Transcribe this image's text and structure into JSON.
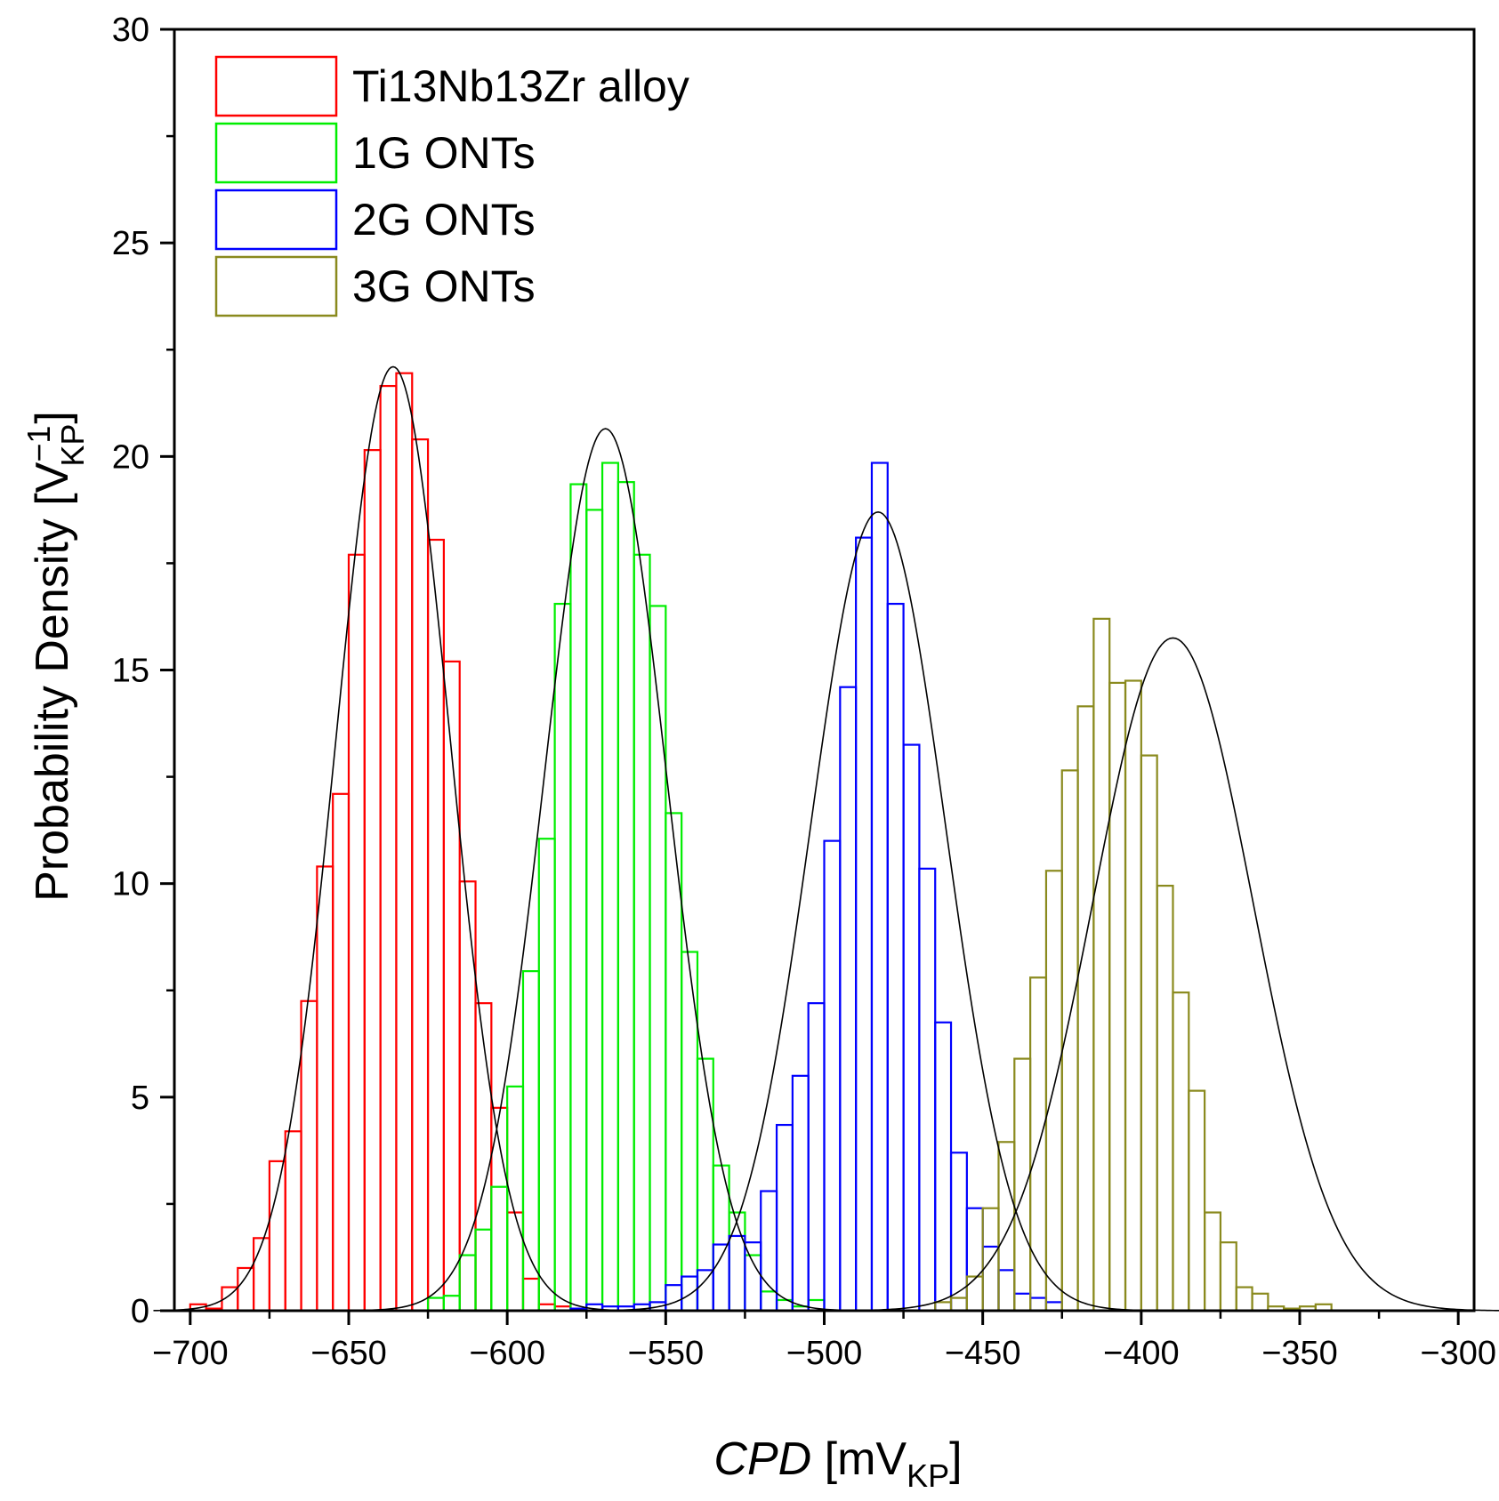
{
  "chart_data": {
    "type": "histogram",
    "title": "",
    "xlabel": {
      "main": "CPD",
      "unit_prefix": "mV",
      "unit_sub": "KP"
    },
    "ylabel": {
      "main": "Probability Density",
      "unit_base": "V",
      "unit_sup": "−1",
      "unit_sub": "KP"
    },
    "xlim": [
      -705,
      -295
    ],
    "ylim": [
      0,
      30
    ],
    "xticks": [
      -700,
      -650,
      -600,
      -550,
      -500,
      -450,
      -400,
      -350,
      -300
    ],
    "xtick_labels": [
      "−700",
      "−650",
      "−600",
      "−550",
      "−500",
      "−450",
      "−400",
      "−350",
      "−300"
    ],
    "yticks": [
      0,
      5,
      10,
      15,
      20,
      25,
      30
    ],
    "ytick_labels": [
      "0",
      "5",
      "10",
      "15",
      "20",
      "25",
      "30"
    ],
    "bin_width": 5,
    "legend_position": "top-left",
    "series": [
      {
        "name": "Ti13Nb13Zr alloy",
        "color": "#ff0000",
        "bin_start": -700,
        "values": [
          0.15,
          0.05,
          0.55,
          1.0,
          1.7,
          3.5,
          4.2,
          7.25,
          10.4,
          12.1,
          17.7,
          20.15,
          21.65,
          21.95,
          20.4,
          18.05,
          15.2,
          10.05,
          7.2,
          4.75,
          2.3,
          0.75,
          0.15,
          0.1
        ]
      },
      {
        "name": "1G ONTs",
        "color": "#00ee00",
        "bin_start": -625,
        "values": [
          0.3,
          0.35,
          1.3,
          1.9,
          2.9,
          5.25,
          7.95,
          11.05,
          16.55,
          19.35,
          18.75,
          19.85,
          19.4,
          17.7,
          16.5,
          11.65,
          8.4,
          5.9,
          3.4,
          2.3,
          1.3,
          0.45,
          0.25,
          0.1,
          0.25
        ]
      },
      {
        "name": "2G ONTs",
        "color": "#0000ff",
        "bin_start": -580,
        "values": [
          0.05,
          0.15,
          0.1,
          0.1,
          0.15,
          0.2,
          0.6,
          0.8,
          0.95,
          1.55,
          1.75,
          1.6,
          2.8,
          4.35,
          5.5,
          7.2,
          11.0,
          14.6,
          18.1,
          19.85,
          16.55,
          13.25,
          10.35,
          6.75,
          3.7,
          2.4,
          1.5,
          0.95,
          0.4,
          0.3,
          0.2
        ]
      },
      {
        "name": "3G ONTs",
        "color": "#8a8a1e",
        "bin_start": -465,
        "values": [
          0.2,
          0.3,
          0.8,
          2.4,
          3.95,
          5.9,
          7.8,
          10.3,
          12.65,
          14.15,
          16.2,
          14.7,
          14.75,
          13.0,
          9.95,
          7.45,
          5.15,
          2.3,
          1.6,
          0.55,
          0.4,
          0.1,
          0.05,
          0.1,
          0.15
        ]
      }
    ],
    "fits": [
      {
        "series": "Ti13Nb13Zr alloy",
        "mean": -636,
        "sigma": 18,
        "peak": 22.1
      },
      {
        "series": "1G ONTs",
        "mean": -569,
        "sigma": 19.3,
        "peak": 20.65
      },
      {
        "series": "2G ONTs",
        "mean": -483,
        "sigma": 21.3,
        "peak": 18.7
      },
      {
        "series": "3G ONTs",
        "mean": -390,
        "sigma": 25.3,
        "peak": 15.75
      }
    ]
  },
  "colors": {
    "axis": "#000000",
    "fit_line": "#000000",
    "background": "#ffffff"
  }
}
